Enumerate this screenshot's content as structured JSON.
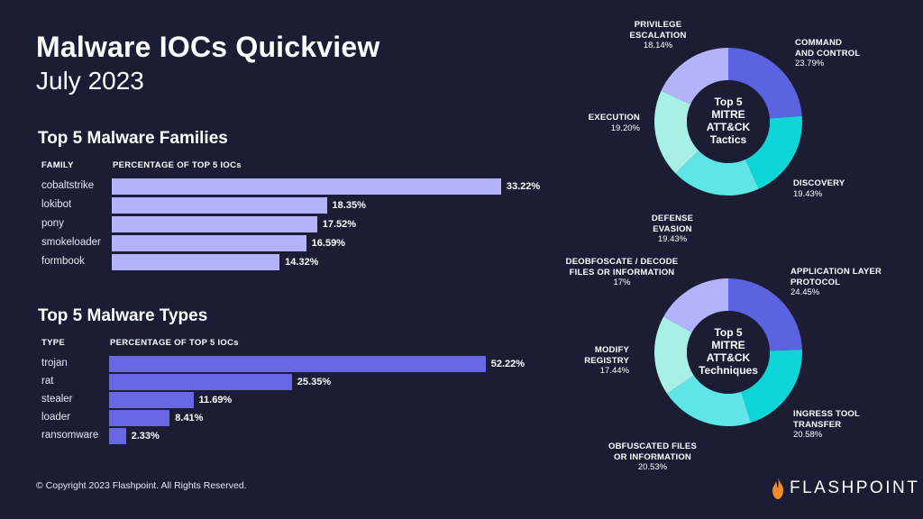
{
  "title": "Malware IOCs Quickview",
  "subtitle": "July 2023",
  "families": {
    "heading": "Top 5 Malware Families",
    "col1": "FAMILY",
    "col2": "PERCENTAGE OF  TOP 5 IOCs",
    "bar_color": "#b3b3fb"
  },
  "types": {
    "heading": "Top 5 Malware Types",
    "col1": "TYPE",
    "col2": "PERCENTAGE OF  TOP 5 IOCs",
    "bar_color": "#6a67e2"
  },
  "tactics": {
    "center": [
      "Top 5",
      "MITRE",
      "ATT&CK",
      "Tactics"
    ]
  },
  "techniques": {
    "center": [
      "Top 5",
      "MITRE",
      "ATT&CK",
      "Techniques"
    ]
  },
  "copyright": "© Copyright 2023 Flashpoint. All Rights Reserved.",
  "logo": {
    "text": "FLASHPOINT",
    "icon": "flame-icon"
  },
  "colors": {
    "background": "#1b1d35",
    "slate_blue": "#5b63e0",
    "teal": "#0fd6d6",
    "light_teal": "#5fe5e5",
    "mint": "#a8f0e6",
    "lavender": "#b3b3fb",
    "logo_flame": "#f28a2e"
  },
  "chart_data": [
    {
      "type": "bar",
      "title": "Top 5 Malware Families",
      "xlabel": "PERCENTAGE OF  TOP 5 IOCs",
      "ylabel": "FAMILY",
      "categories": [
        "cobaltstrike",
        "lokibot",
        "pony",
        "smokeloader",
        "formbook"
      ],
      "values": [
        33.22,
        18.35,
        17.52,
        16.59,
        14.32
      ],
      "value_labels": [
        "33.22%",
        "18.35%",
        "17.52%",
        "16.59%",
        "14.32%"
      ],
      "orientation": "horizontal"
    },
    {
      "type": "bar",
      "title": "Top 5 Malware Types",
      "xlabel": "PERCENTAGE OF  TOP 5 IOCs",
      "ylabel": "TYPE",
      "categories": [
        "trojan",
        "rat",
        "stealer",
        "loader",
        "ransomware"
      ],
      "values": [
        52.22,
        25.35,
        11.69,
        8.41,
        2.33
      ],
      "value_labels": [
        "52.22%",
        "25.35%",
        "11.69%",
        "8.41%",
        "2.33%"
      ],
      "orientation": "horizontal"
    },
    {
      "type": "pie",
      "title": "Top 5 MITRE ATT&CK Tactics",
      "slices": [
        {
          "label": [
            "COMMAND",
            "AND CONTROL"
          ],
          "value": 23.79,
          "value_label": "23.79%",
          "color": "#5b63e0"
        },
        {
          "label": [
            "DISCOVERY"
          ],
          "value": 19.43,
          "value_label": "19.43%",
          "color": "#0fd6d6"
        },
        {
          "label": [
            "DEFENSE EVASION"
          ],
          "value": 19.43,
          "value_label": "19.43%",
          "color": "#5fe5e5"
        },
        {
          "label": [
            "EXECUTION"
          ],
          "value": 19.2,
          "value_label": "19.20%",
          "color": "#a8f0e6"
        },
        {
          "label": [
            "PRIVILEGE",
            "ESCALATION"
          ],
          "value": 18.14,
          "value_label": "18.14%",
          "color": "#b3b3fb"
        }
      ]
    },
    {
      "type": "pie",
      "title": "Top 5 MITRE ATT&CK Techniques",
      "slices": [
        {
          "label": [
            "APPLICATION LAYER",
            "PROTOCOL"
          ],
          "value": 24.45,
          "value_label": "24.45%",
          "color": "#5b63e0"
        },
        {
          "label": [
            "INGRESS TOOL",
            "TRANSFER"
          ],
          "value": 20.58,
          "value_label": "20.58%",
          "color": "#0fd6d6"
        },
        {
          "label": [
            "OBFUSCATED FILES",
            "OR INFORMATION"
          ],
          "value": 20.53,
          "value_label": "20.53%",
          "color": "#5fe5e5"
        },
        {
          "label": [
            "MODIFY",
            "REGISTRY"
          ],
          "value": 17.44,
          "value_label": "17.44%",
          "color": "#a8f0e6"
        },
        {
          "label": [
            "DEOBFOSCATE / DECODE",
            "FILES OR INFORMATION"
          ],
          "value": 17,
          "value_label": "17%",
          "color": "#b3b3fb"
        }
      ]
    }
  ]
}
